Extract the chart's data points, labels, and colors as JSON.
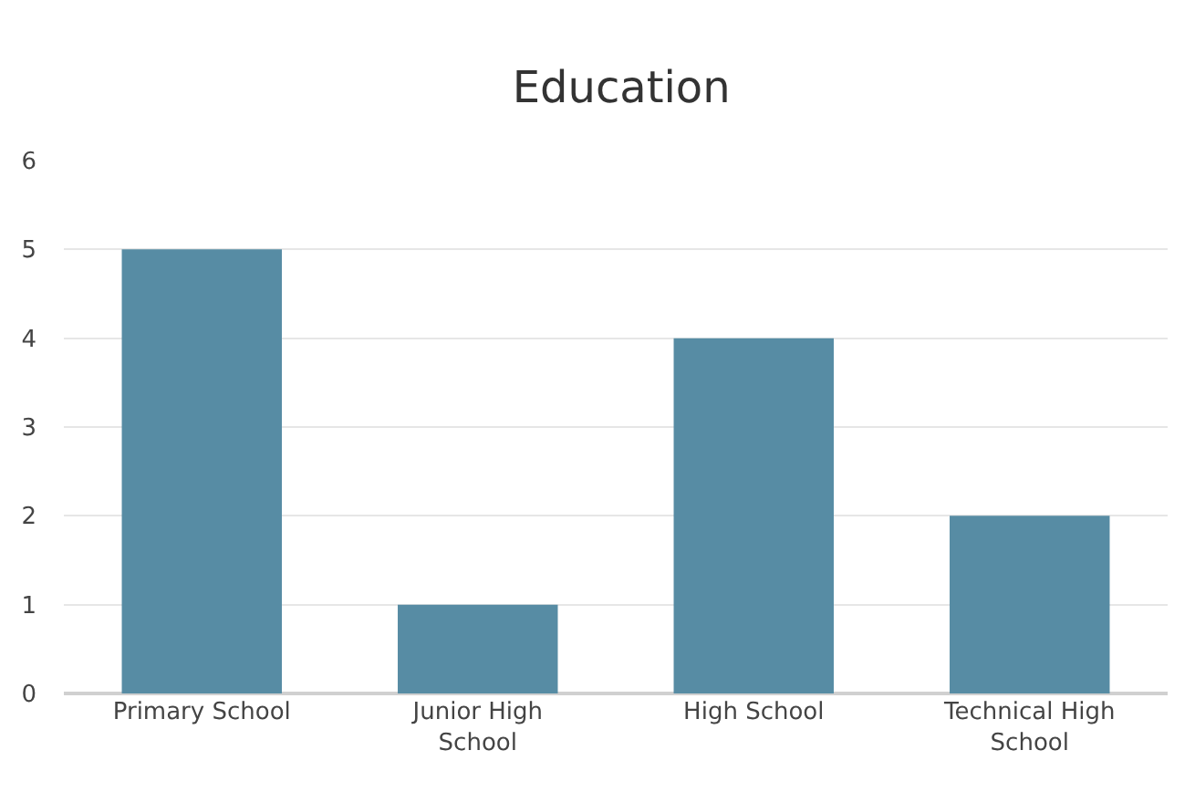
{
  "chart_data": {
    "type": "bar",
    "title": "Education",
    "categories": [
      "Primary School",
      "Junior High\nSchool",
      "High School",
      "Technical High\nSchool"
    ],
    "values": [
      5,
      1,
      4,
      2
    ],
    "color": "#578ca4",
    "ylim": [
      0,
      6
    ],
    "yticks": [
      0,
      1,
      2,
      3,
      4,
      5,
      6
    ],
    "grid": "y"
  }
}
